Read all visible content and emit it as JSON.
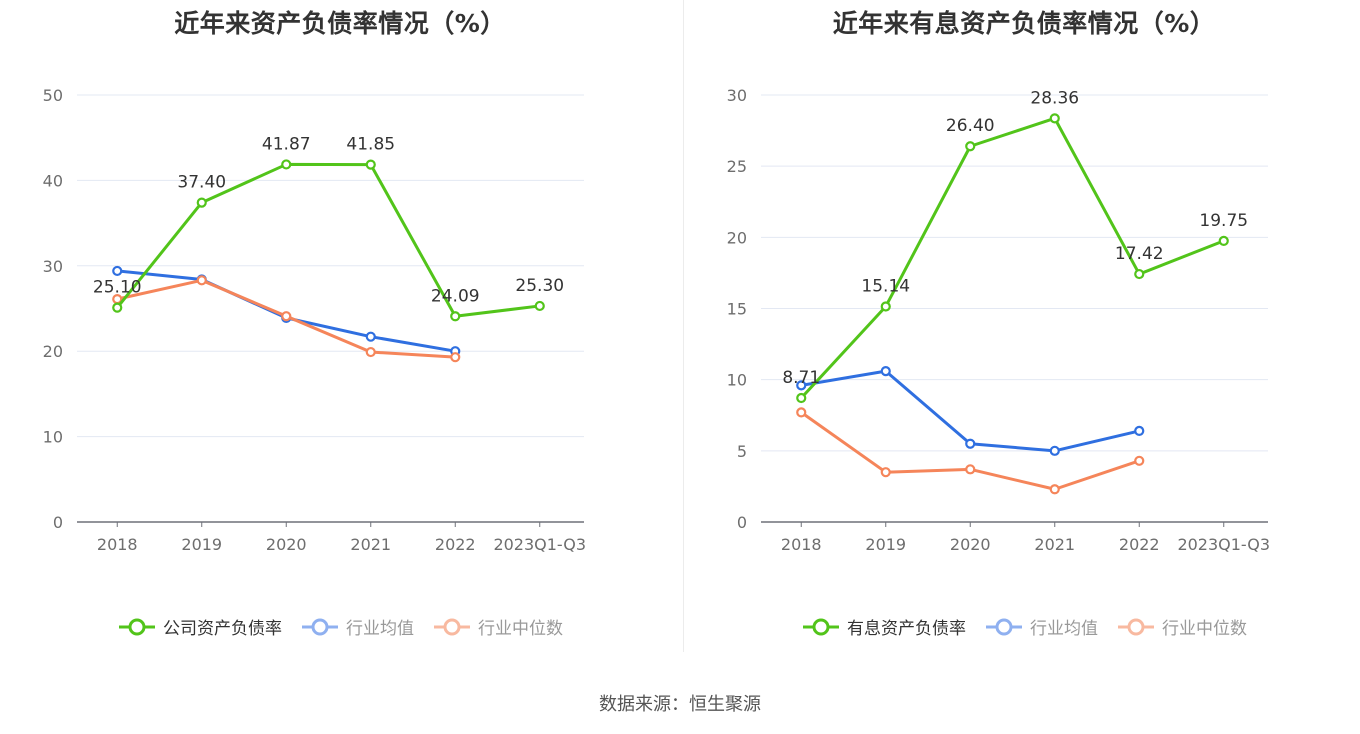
{
  "source": "数据来源：恒生聚源",
  "colors": {
    "company": "#52c41a",
    "industry_avg": "#2f6fe0",
    "industry_median": "#f5855a",
    "legend_avg": "#8fb0f0",
    "legend_median": "#f8b9a0",
    "grid": "#e3e8f3",
    "axis": "#6e7079"
  },
  "chart_data": [
    {
      "type": "line",
      "title": "近年来资产负债率情况（%）",
      "categories": [
        "2018",
        "2019",
        "2020",
        "2021",
        "2022",
        "2023Q1-Q3"
      ],
      "ylim": [
        0,
        50
      ],
      "yticks": [
        "0",
        "10",
        "20",
        "30",
        "40",
        "50"
      ],
      "grid": true,
      "legend_position": "bottom",
      "series": [
        {
          "name": "公司资产负债率",
          "color_key": "company",
          "values": [
            25.1,
            37.4,
            41.87,
            41.85,
            24.09,
            25.3
          ],
          "labels": [
            "25.10",
            "37.40",
            "41.87",
            "41.85",
            "24.09",
            "25.30"
          ]
        },
        {
          "name": "行业均值",
          "color_key": "industry_avg",
          "values": [
            29.4,
            28.4,
            23.9,
            21.7,
            20.0,
            null
          ]
        },
        {
          "name": "行业中位数",
          "color_key": "industry_median",
          "values": [
            26.1,
            28.3,
            24.1,
            19.9,
            19.3,
            null
          ]
        }
      ]
    },
    {
      "type": "line",
      "title": "近年来有息资产负债率情况（%）",
      "categories": [
        "2018",
        "2019",
        "2020",
        "2021",
        "2022",
        "2023Q1-Q3"
      ],
      "ylim": [
        0,
        30
      ],
      "yticks": [
        "0",
        "5",
        "10",
        "15",
        "20",
        "25",
        "30"
      ],
      "grid": true,
      "legend_position": "bottom",
      "series": [
        {
          "name": "有息资产负债率",
          "color_key": "company",
          "values": [
            8.71,
            15.14,
            26.4,
            28.36,
            17.42,
            19.75
          ],
          "labels": [
            "8.71",
            "15.14",
            "26.40",
            "28.36",
            "17.42",
            "19.75"
          ]
        },
        {
          "name": "行业均值",
          "color_key": "industry_avg",
          "values": [
            9.6,
            10.6,
            5.5,
            5.0,
            6.4,
            null
          ]
        },
        {
          "name": "行业中位数",
          "color_key": "industry_median",
          "values": [
            7.7,
            3.5,
            3.7,
            2.3,
            4.3,
            null
          ]
        }
      ]
    }
  ]
}
